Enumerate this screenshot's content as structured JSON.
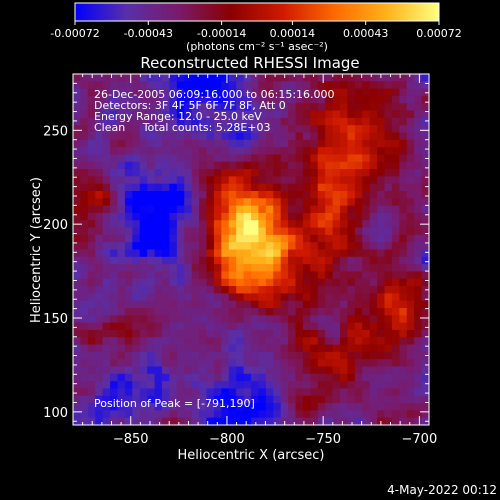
{
  "colors": {
    "background": "#000000",
    "foreground": "#ffffff",
    "colorbar_stops": [
      "#0000ff",
      "#5a2fa8",
      "#7a1a6a",
      "#8a0000",
      "#d01a00",
      "#ff6a00",
      "#ffb21a",
      "#ffff80"
    ]
  },
  "colorbar": {
    "tick_labels": [
      "-0.00072",
      "-0.00043",
      "-0.00014",
      "0.00014",
      "0.00043",
      "0.00072"
    ],
    "tick_values": [
      -0.00072,
      -0.00043,
      -0.00014,
      0.00014,
      0.00043,
      0.00072
    ],
    "range": [
      -0.00072,
      0.00072
    ],
    "units_label": "(photons cm⁻² s⁻¹ asec⁻²)"
  },
  "chart_data": {
    "type": "heatmap",
    "title": "Reconstructed RHESSI Image",
    "xlabel": "Heliocentric X (arcsec)",
    "ylabel": "Heliocentric Y (arcsec)",
    "xlim": [
      -880,
      -695
    ],
    "ylim": [
      93,
      280
    ],
    "x_ticks": [
      -850,
      -800,
      -750,
      -700
    ],
    "y_ticks": [
      100,
      150,
      200,
      250
    ],
    "x_tick_labels": [
      "−850",
      "−800",
      "−750",
      "−700"
    ],
    "y_tick_labels": [
      "100",
      "150",
      "200",
      "250"
    ],
    "peak": [
      -791,
      190
    ],
    "grid": false,
    "annotations": [
      "26-Dec-2005 06:09:16.000 to 06:15:16.000",
      "Detectors: 3F 4F 5F 6F 7F 8F, Att 0",
      "Energy Range: 12.0 - 25.0 keV",
      "Clean     Total counts: 5.28E+03"
    ],
    "peak_label": "Position of Peak = [-791,190]"
  },
  "footer": {
    "timestamp": "4-May-2022 00:12"
  }
}
